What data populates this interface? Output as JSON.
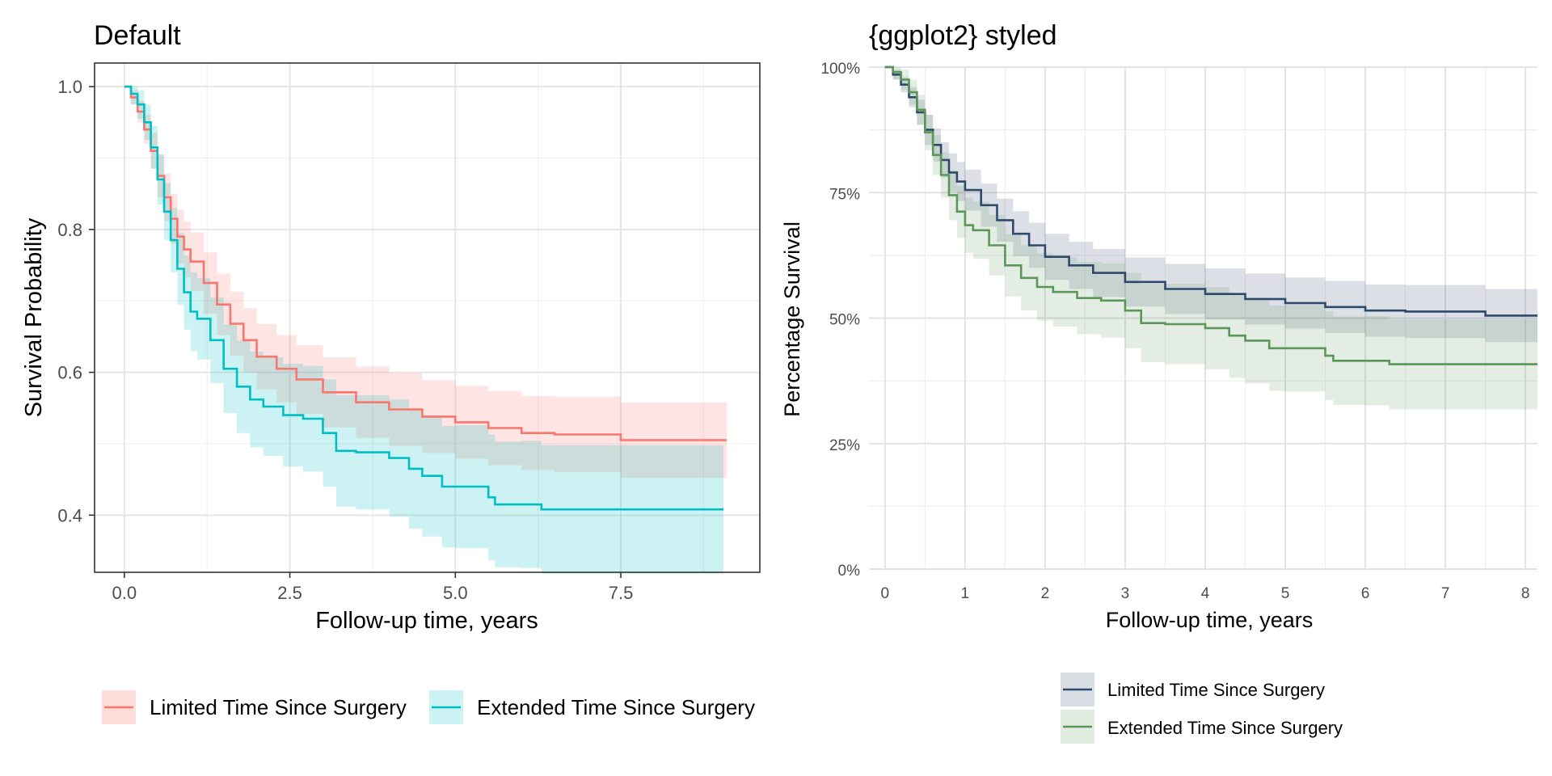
{
  "chart_data": [
    {
      "type": "line",
      "title": "Default",
      "xlabel": "Follow-up time, years",
      "ylabel": "Survival Probability",
      "xlim": [
        -0.45,
        9.6
      ],
      "ylim": [
        0.32,
        1.033
      ],
      "x_ticks": [
        0,
        2.5,
        5,
        7.5
      ],
      "x_tick_labels": [
        "0.0",
        "2.5",
        "5.0",
        "7.5"
      ],
      "y_ticks": [
        0.4,
        0.6,
        0.8,
        1.0
      ],
      "y_tick_labels": [
        "0.4",
        "0.6",
        "0.8",
        "1.0"
      ],
      "grid": true,
      "legend_position": "bottom",
      "series": [
        {
          "name": "Limited Time Since Surgery",
          "color": "#F8766D",
          "x": [
            0,
            0.1,
            0.2,
            0.3,
            0.4,
            0.5,
            0.6,
            0.7,
            0.8,
            0.9,
            1.0,
            1.2,
            1.4,
            1.6,
            1.8,
            2.0,
            2.3,
            2.6,
            3.0,
            3.5,
            4.0,
            4.5,
            5.0,
            5.5,
            6.0,
            6.5,
            7.0,
            7.4,
            7.5,
            8.0,
            8.5,
            9.1
          ],
          "y": [
            1.0,
            0.985,
            0.965,
            0.94,
            0.91,
            0.875,
            0.845,
            0.815,
            0.79,
            0.772,
            0.755,
            0.725,
            0.695,
            0.668,
            0.645,
            0.622,
            0.605,
            0.59,
            0.572,
            0.558,
            0.548,
            0.538,
            0.53,
            0.522,
            0.515,
            0.513,
            0.513,
            0.513,
            0.505,
            0.505,
            0.505,
            0.505
          ],
          "lower": [
            1.0,
            0.975,
            0.95,
            0.92,
            0.885,
            0.845,
            0.812,
            0.78,
            0.752,
            0.733,
            0.714,
            0.682,
            0.652,
            0.623,
            0.6,
            0.576,
            0.558,
            0.542,
            0.523,
            0.508,
            0.497,
            0.487,
            0.479,
            0.47,
            0.463,
            0.46,
            0.46,
            0.46,
            0.452,
            0.452,
            0.452,
            0.452
          ],
          "upper": [
            1.0,
            0.995,
            0.98,
            0.96,
            0.935,
            0.905,
            0.878,
            0.85,
            0.828,
            0.811,
            0.796,
            0.768,
            0.738,
            0.713,
            0.69,
            0.668,
            0.652,
            0.638,
            0.621,
            0.608,
            0.599,
            0.589,
            0.581,
            0.574,
            0.567,
            0.566,
            0.566,
            0.566,
            0.558,
            0.558,
            0.558,
            0.558
          ]
        },
        {
          "name": "Extended Time Since Surgery",
          "color": "#00BFC4",
          "x": [
            0,
            0.1,
            0.2,
            0.3,
            0.4,
            0.5,
            0.6,
            0.7,
            0.8,
            0.9,
            1.0,
            1.1,
            1.3,
            1.5,
            1.7,
            1.9,
            2.1,
            2.4,
            2.7,
            3.0,
            3.2,
            3.5,
            4.0,
            4.3,
            4.5,
            4.8,
            5.0,
            5.5,
            5.6,
            6.0,
            6.2,
            6.3,
            7.0,
            8.0,
            9.05
          ],
          "y": [
            1.0,
            0.99,
            0.975,
            0.95,
            0.915,
            0.87,
            0.825,
            0.785,
            0.745,
            0.712,
            0.685,
            0.675,
            0.645,
            0.605,
            0.58,
            0.562,
            0.552,
            0.54,
            0.535,
            0.515,
            0.49,
            0.488,
            0.48,
            0.465,
            0.455,
            0.44,
            0.44,
            0.425,
            0.415,
            0.415,
            0.415,
            0.408,
            0.408,
            0.408,
            0.408
          ],
          "lower": [
            1.0,
            0.975,
            0.955,
            0.925,
            0.885,
            0.835,
            0.785,
            0.74,
            0.695,
            0.66,
            0.63,
            0.618,
            0.585,
            0.543,
            0.515,
            0.495,
            0.483,
            0.468,
            0.461,
            0.44,
            0.412,
            0.408,
            0.398,
            0.381,
            0.37,
            0.355,
            0.354,
            0.337,
            0.327,
            0.326,
            0.326,
            0.318,
            0.318,
            0.318,
            0.318
          ],
          "upper": [
            1.0,
            1.0,
            0.995,
            0.975,
            0.945,
            0.905,
            0.865,
            0.83,
            0.795,
            0.764,
            0.74,
            0.732,
            0.705,
            0.667,
            0.645,
            0.629,
            0.621,
            0.612,
            0.609,
            0.59,
            0.568,
            0.568,
            0.562,
            0.549,
            0.54,
            0.525,
            0.526,
            0.513,
            0.503,
            0.504,
            0.504,
            0.498,
            0.498,
            0.498,
            0.498
          ]
        }
      ]
    },
    {
      "type": "line",
      "title": "{ggplot2} styled",
      "xlabel": "Follow-up time, years",
      "ylabel": "Percentage Survival",
      "xlim": [
        -0.2,
        8.15
      ],
      "ylim": [
        0,
        1.0
      ],
      "x_ticks": [
        0,
        1,
        2,
        3,
        4,
        5,
        6,
        7,
        8
      ],
      "x_tick_labels": [
        "0",
        "1",
        "2",
        "3",
        "4",
        "5",
        "6",
        "7",
        "8"
      ],
      "y_ticks": [
        0,
        0.25,
        0.5,
        0.75,
        1.0
      ],
      "y_tick_labels": [
        "0%",
        "25%",
        "50%",
        "75%",
        "100%"
      ],
      "grid": true,
      "legend_position": "bottom",
      "series": [
        {
          "name": "Limited Time Since Surgery",
          "color": "#2E4A6B",
          "x": [
            0,
            0.1,
            0.2,
            0.3,
            0.4,
            0.5,
            0.6,
            0.7,
            0.8,
            0.9,
            1.0,
            1.2,
            1.4,
            1.6,
            1.8,
            2.0,
            2.3,
            2.6,
            3.0,
            3.5,
            4.0,
            4.5,
            5.0,
            5.5,
            6.0,
            6.5,
            7.0,
            7.4,
            7.5,
            8.15
          ],
          "y": [
            1.0,
            0.985,
            0.965,
            0.94,
            0.91,
            0.875,
            0.845,
            0.815,
            0.79,
            0.772,
            0.755,
            0.725,
            0.695,
            0.668,
            0.645,
            0.622,
            0.605,
            0.59,
            0.572,
            0.558,
            0.548,
            0.538,
            0.53,
            0.522,
            0.515,
            0.513,
            0.513,
            0.513,
            0.505,
            0.505
          ],
          "lower": [
            1.0,
            0.975,
            0.95,
            0.92,
            0.885,
            0.845,
            0.812,
            0.78,
            0.752,
            0.733,
            0.714,
            0.682,
            0.652,
            0.623,
            0.6,
            0.576,
            0.558,
            0.542,
            0.523,
            0.508,
            0.497,
            0.487,
            0.479,
            0.47,
            0.463,
            0.46,
            0.46,
            0.46,
            0.452,
            0.452
          ],
          "upper": [
            1.0,
            0.995,
            0.98,
            0.96,
            0.935,
            0.905,
            0.878,
            0.85,
            0.828,
            0.811,
            0.796,
            0.768,
            0.738,
            0.713,
            0.69,
            0.668,
            0.652,
            0.638,
            0.621,
            0.608,
            0.599,
            0.589,
            0.581,
            0.574,
            0.567,
            0.566,
            0.566,
            0.566,
            0.558,
            0.558
          ]
        },
        {
          "name": "Extended Time Since Surgery",
          "color": "#5A9658",
          "x": [
            0,
            0.1,
            0.2,
            0.3,
            0.4,
            0.5,
            0.6,
            0.7,
            0.8,
            0.9,
            1.0,
            1.1,
            1.3,
            1.5,
            1.7,
            1.9,
            2.1,
            2.4,
            2.7,
            3.0,
            3.2,
            3.5,
            4.0,
            4.3,
            4.5,
            4.8,
            5.0,
            5.5,
            5.6,
            6.0,
            6.2,
            6.3,
            7.0,
            8.15
          ],
          "y": [
            1.0,
            0.99,
            0.975,
            0.95,
            0.915,
            0.87,
            0.825,
            0.785,
            0.745,
            0.712,
            0.685,
            0.675,
            0.645,
            0.605,
            0.58,
            0.562,
            0.552,
            0.54,
            0.535,
            0.515,
            0.49,
            0.488,
            0.48,
            0.465,
            0.455,
            0.44,
            0.44,
            0.425,
            0.415,
            0.415,
            0.415,
            0.408,
            0.408,
            0.408
          ],
          "lower": [
            1.0,
            0.975,
            0.955,
            0.925,
            0.885,
            0.835,
            0.785,
            0.74,
            0.695,
            0.66,
            0.63,
            0.618,
            0.585,
            0.543,
            0.515,
            0.495,
            0.483,
            0.468,
            0.461,
            0.44,
            0.412,
            0.408,
            0.398,
            0.381,
            0.37,
            0.355,
            0.354,
            0.337,
            0.327,
            0.326,
            0.326,
            0.318,
            0.318,
            0.318
          ],
          "upper": [
            1.0,
            1.0,
            0.995,
            0.975,
            0.945,
            0.905,
            0.865,
            0.83,
            0.795,
            0.764,
            0.74,
            0.732,
            0.705,
            0.667,
            0.645,
            0.629,
            0.621,
            0.612,
            0.609,
            0.59,
            0.568,
            0.568,
            0.562,
            0.549,
            0.54,
            0.525,
            0.526,
            0.513,
            0.503,
            0.504,
            0.504,
            0.498,
            0.498,
            0.498
          ]
        }
      ]
    }
  ]
}
